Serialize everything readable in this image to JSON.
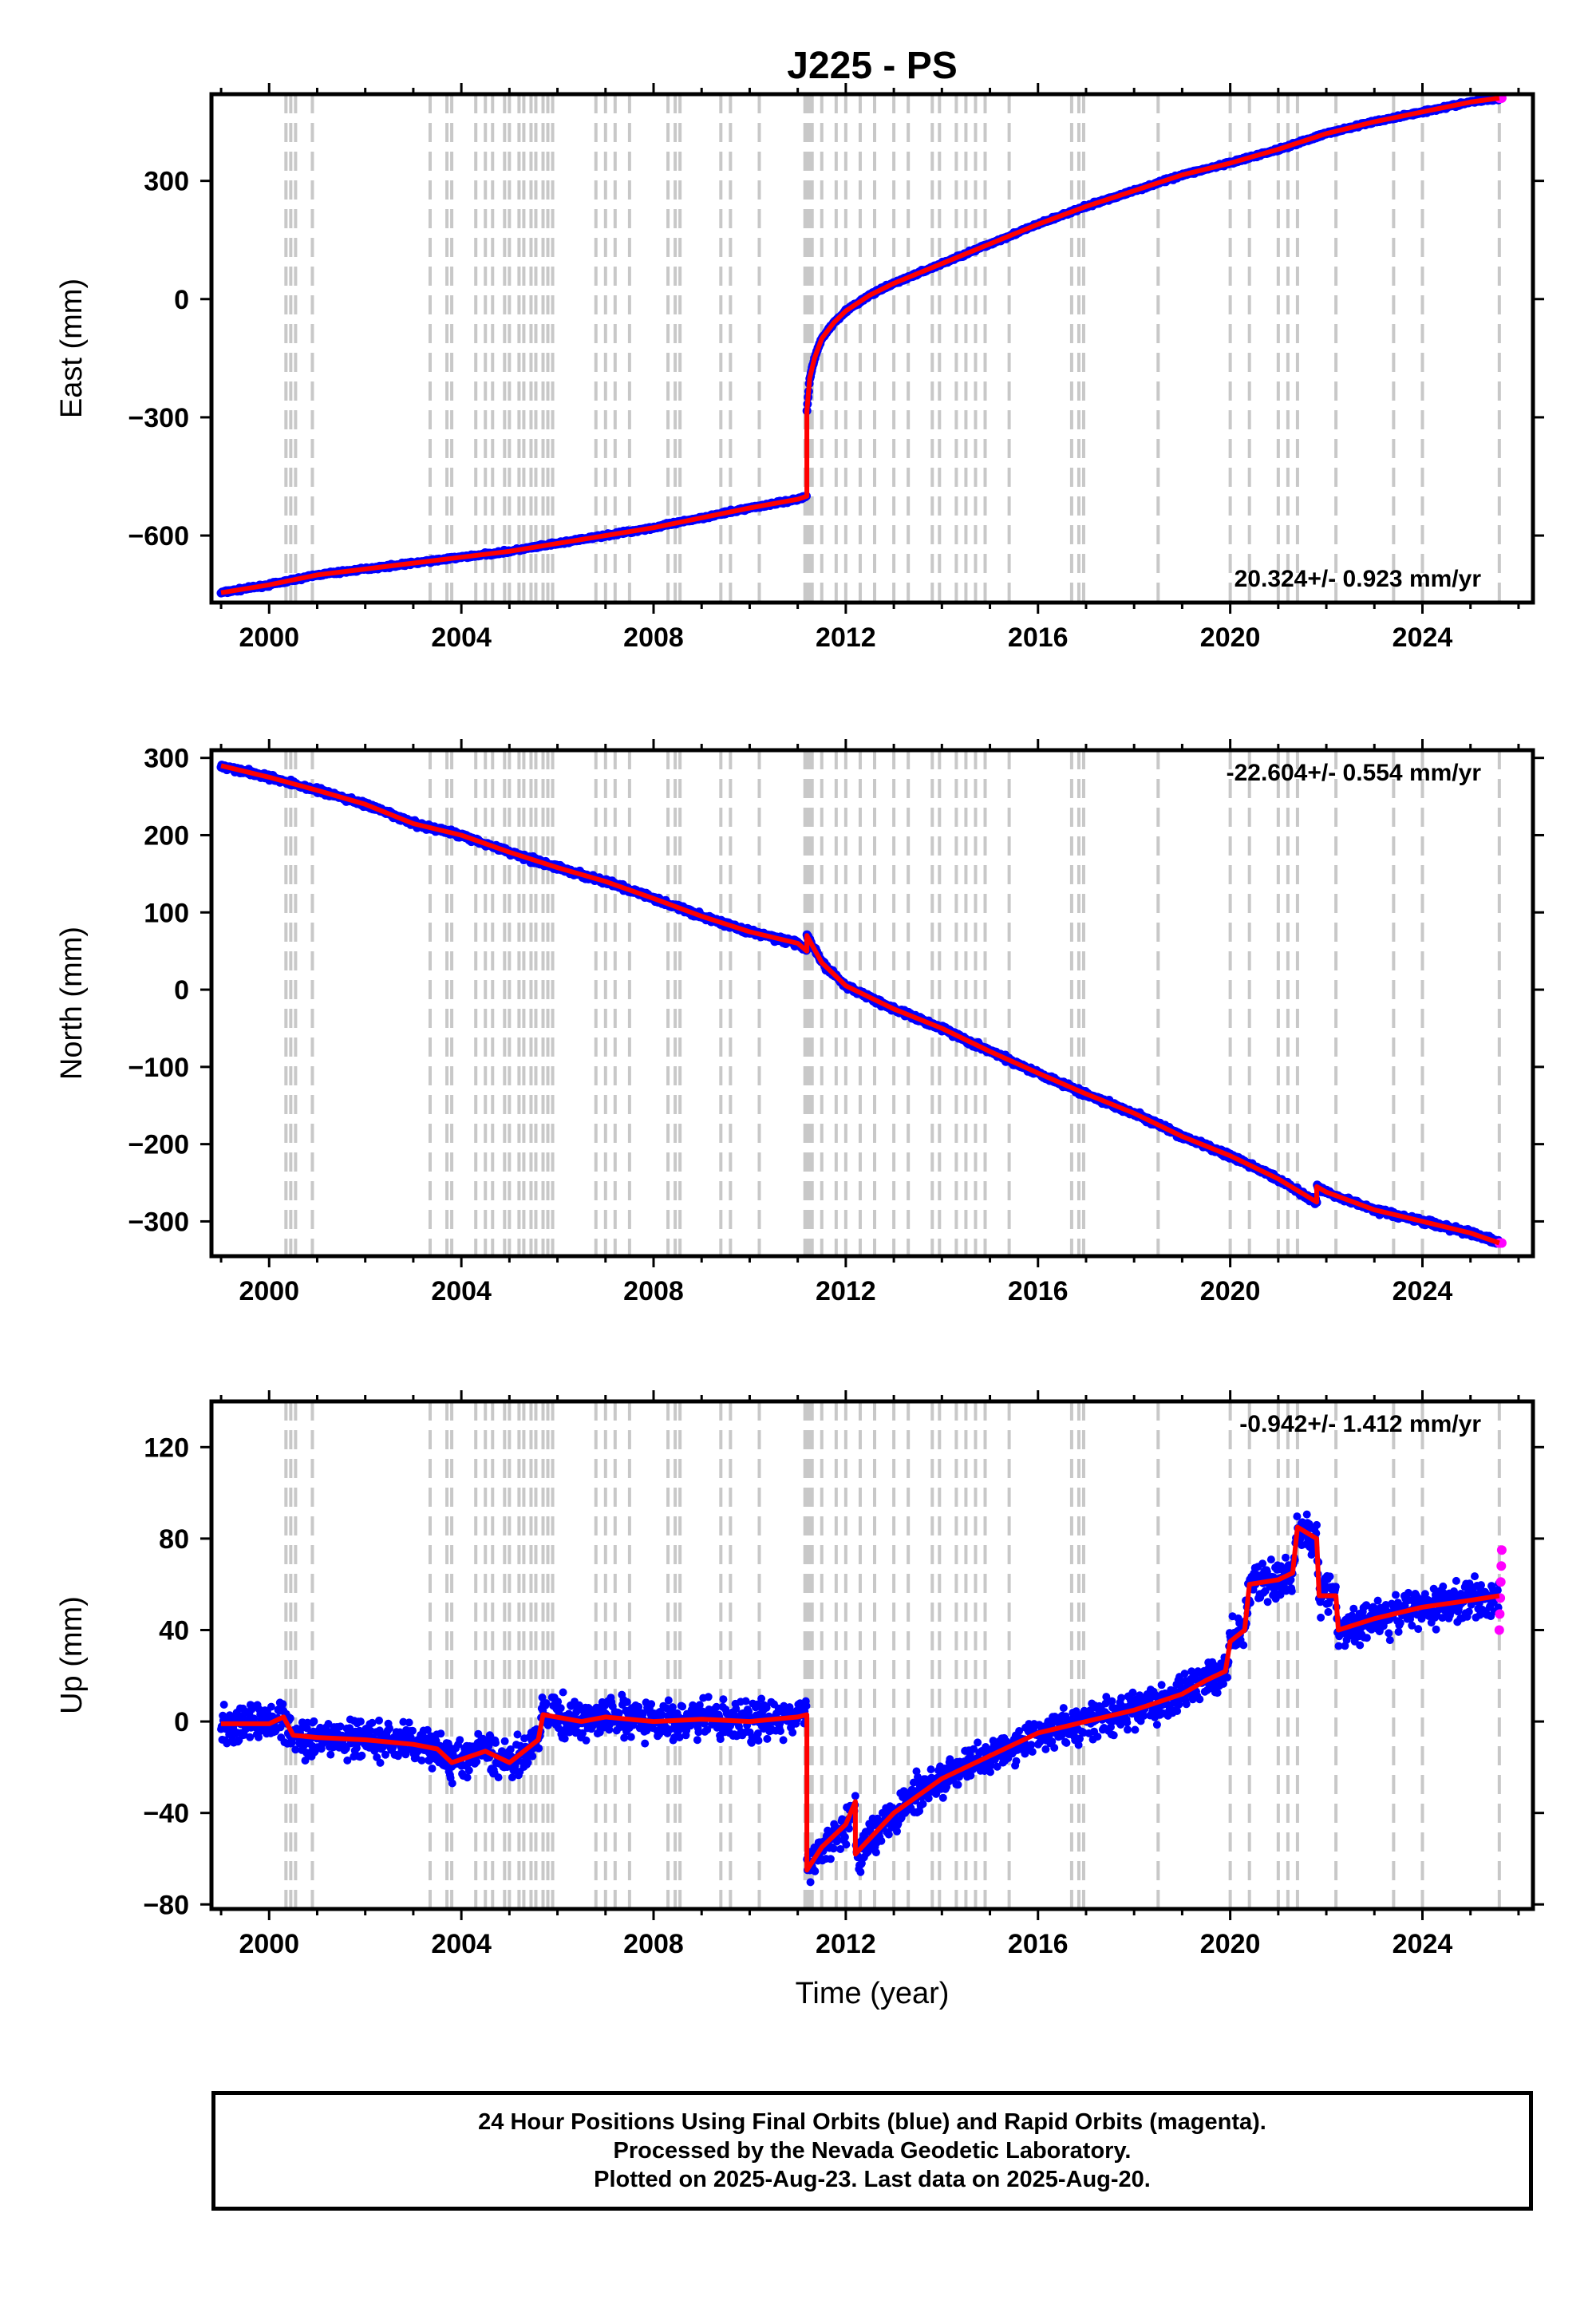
{
  "title": "J225 - PS",
  "footer": {
    "line1": "24 Hour Positions Using Final Orbits (blue) and Rapid Orbits (magenta).",
    "line2": "Processed by the Nevada Geodetic Laboratory.",
    "line3": "Plotted on 2025-Aug-23. Last data on 2025-Aug-20."
  },
  "colors": {
    "final_orbits": "#0000ff",
    "rapid_orbits": "#ff00ff",
    "model_fit": "#ff0000",
    "equipment_change_lines": "#c8c8c8"
  },
  "chart_data": [
    {
      "type": "scatter",
      "component": "east",
      "ylabel": "East (mm)",
      "xlabel": "",
      "xlim": [
        1998.8,
        2026.3
      ],
      "ylim": [
        -770,
        520
      ],
      "xticks": [
        2000,
        2004,
        2008,
        2012,
        2016,
        2020,
        2024
      ],
      "yticks": [
        -600,
        -300,
        0,
        300
      ],
      "ytick_labels": [
        "−600",
        "−300",
        "0",
        "300"
      ],
      "rate_label": "20.324+/- 0.923 mm/yr",
      "rate_position": "bottom-right",
      "series": [
        {
          "name": "",
          "color": "#ff0000",
          "x": [
            1999.0,
            2000.0,
            2001.0,
            2002.0,
            2003.0,
            2004.0,
            2005.0,
            2006.0,
            2007.0,
            2008.0,
            2009.0,
            2010.0,
            2011.0,
            2011.19,
            2011.19,
            2011.25,
            2011.35,
            2011.5,
            2011.75,
            2012.0,
            2012.5,
            2013.0,
            2014.0,
            2015.0,
            2016.0,
            2017.0,
            2018.0,
            2019.0,
            2020.0,
            2021.0,
            2022.0,
            2023.0,
            2024.0,
            2025.0,
            2025.6
          ],
          "y": [
            -745,
            -725,
            -700,
            -685,
            -670,
            -655,
            -640,
            -620,
            -600,
            -580,
            -555,
            -530,
            -508,
            -500,
            -285,
            -200,
            -150,
            -100,
            -60,
            -30,
            10,
            40,
            90,
            140,
            190,
            235,
            275,
            315,
            345,
            380,
            420,
            450,
            475,
            500,
            510
          ]
        }
      ]
    },
    {
      "type": "scatter",
      "component": "north",
      "ylabel": "North (mm)",
      "xlabel": "",
      "xlim": [
        1998.8,
        2026.3
      ],
      "ylim": [
        -345,
        310
      ],
      "xticks": [
        2000,
        2004,
        2008,
        2012,
        2016,
        2020,
        2024
      ],
      "yticks": [
        -300,
        -200,
        -100,
        0,
        100,
        200,
        300
      ],
      "ytick_labels": [
        "−300",
        "−200",
        "−100",
        "0",
        "100",
        "200",
        "300"
      ],
      "rate_label": "-22.604+/- 0.554 mm/yr",
      "rate_position": "top-right",
      "series": [
        {
          "name": "",
          "color": "#ff0000",
          "x": [
            1999.0,
            2000.0,
            2001.0,
            2002.0,
            2003.0,
            2004.0,
            2005.0,
            2006.0,
            2007.0,
            2008.0,
            2009.0,
            2010.0,
            2011.0,
            2011.19,
            2011.19,
            2011.5,
            2012.0,
            2013.0,
            2014.0,
            2015.0,
            2016.0,
            2017.0,
            2018.0,
            2019.0,
            2020.0,
            2021.0,
            2021.8,
            2021.8,
            2022.0,
            2023.0,
            2024.0,
            2025.0,
            2025.6
          ],
          "y": [
            290,
            275,
            258,
            240,
            215,
            200,
            178,
            158,
            140,
            118,
            95,
            75,
            60,
            50,
            70,
            35,
            5,
            -25,
            -50,
            -80,
            -108,
            -135,
            -160,
            -190,
            -215,
            -245,
            -275,
            -255,
            -262,
            -285,
            -300,
            -315,
            -328
          ]
        }
      ]
    },
    {
      "type": "scatter",
      "component": "up",
      "ylabel": "Up (mm)",
      "xlabel": "Time (year)",
      "xlim": [
        1998.8,
        2026.3
      ],
      "ylim": [
        -82,
        140
      ],
      "xticks": [
        2000,
        2004,
        2008,
        2012,
        2016,
        2020,
        2024
      ],
      "yticks": [
        -80,
        -40,
        0,
        40,
        80,
        120
      ],
      "ytick_labels": [
        "−80",
        "−40",
        "0",
        "40",
        "80",
        "120"
      ],
      "rate_label": "-0.942+/- 1.412 mm/yr",
      "rate_position": "top-right",
      "series": [
        {
          "name": "",
          "color": "#ff0000",
          "x": [
            1999.0,
            2000.0,
            2000.3,
            2000.5,
            2001.0,
            2002.0,
            2003.0,
            2003.5,
            2003.8,
            2004.5,
            2005.0,
            2005.6,
            2005.7,
            2006.5,
            2007.0,
            2008.0,
            2009.0,
            2010.0,
            2011.0,
            2011.19,
            2011.19,
            2011.5,
            2012.0,
            2012.2,
            2012.2,
            2013.0,
            2014.0,
            2015.0,
            2016.0,
            2017.0,
            2018.0,
            2019.0,
            2019.5,
            2019.9,
            2020.0,
            2020.3,
            2020.4,
            2021.0,
            2021.3,
            2021.4,
            2021.8,
            2021.85,
            2022.2,
            2022.25,
            2023.0,
            2024.0,
            2025.0,
            2025.6
          ],
          "y": [
            -1,
            -1,
            2,
            -6,
            -7,
            -8,
            -10,
            -12,
            -18,
            -13,
            -18,
            -8,
            3,
            0,
            2,
            0,
            1,
            0,
            2,
            3,
            -65,
            -55,
            -45,
            -35,
            -58,
            -40,
            -25,
            -15,
            -5,
            0,
            5,
            12,
            18,
            22,
            35,
            40,
            60,
            62,
            65,
            85,
            80,
            55,
            55,
            40,
            45,
            50,
            53,
            55
          ]
        }
      ]
    }
  ]
}
